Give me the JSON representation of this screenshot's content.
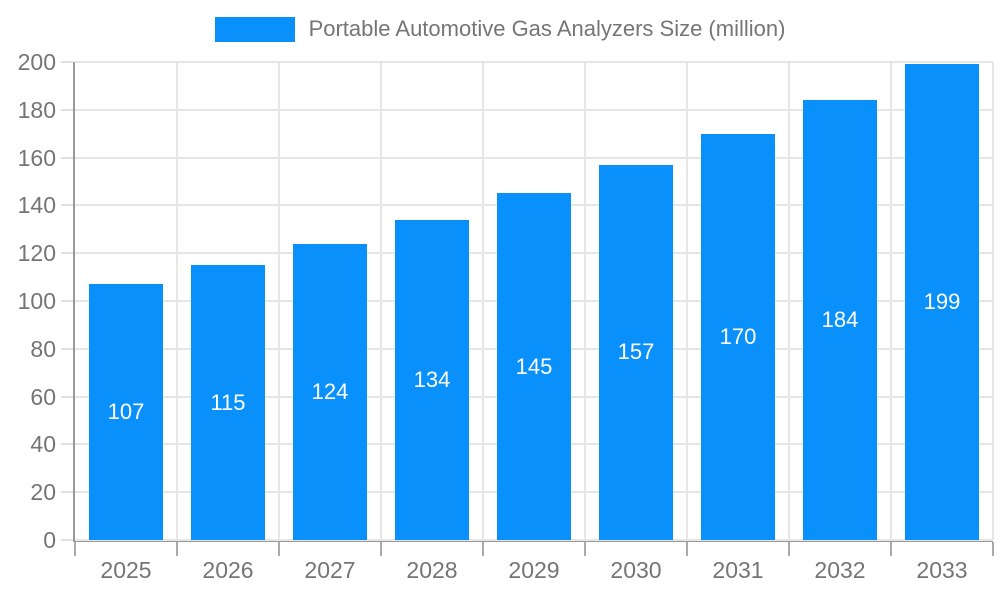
{
  "chart_data": {
    "type": "bar",
    "title": "Portable Automotive Gas Analyzers Size (million)",
    "categories": [
      "2025",
      "2026",
      "2027",
      "2028",
      "2029",
      "2030",
      "2031",
      "2032",
      "2033"
    ],
    "values": [
      107,
      115,
      124,
      134,
      145,
      157,
      170,
      184,
      199
    ],
    "xlabel": "",
    "ylabel": "",
    "ylim": [
      0,
      200
    ],
    "y_ticks": [
      0,
      20,
      40,
      60,
      80,
      100,
      120,
      140,
      160,
      180,
      200
    ],
    "grid": true,
    "legend_position": "top-center",
    "value_label_position": "inside-center",
    "colors": {
      "bar": "#0a90fb",
      "grid": "#e6e6e6",
      "axis": "#9a9a9a",
      "tick_text": "#757575",
      "value_label_text": "#ffffff",
      "background": "#ffffff"
    }
  }
}
